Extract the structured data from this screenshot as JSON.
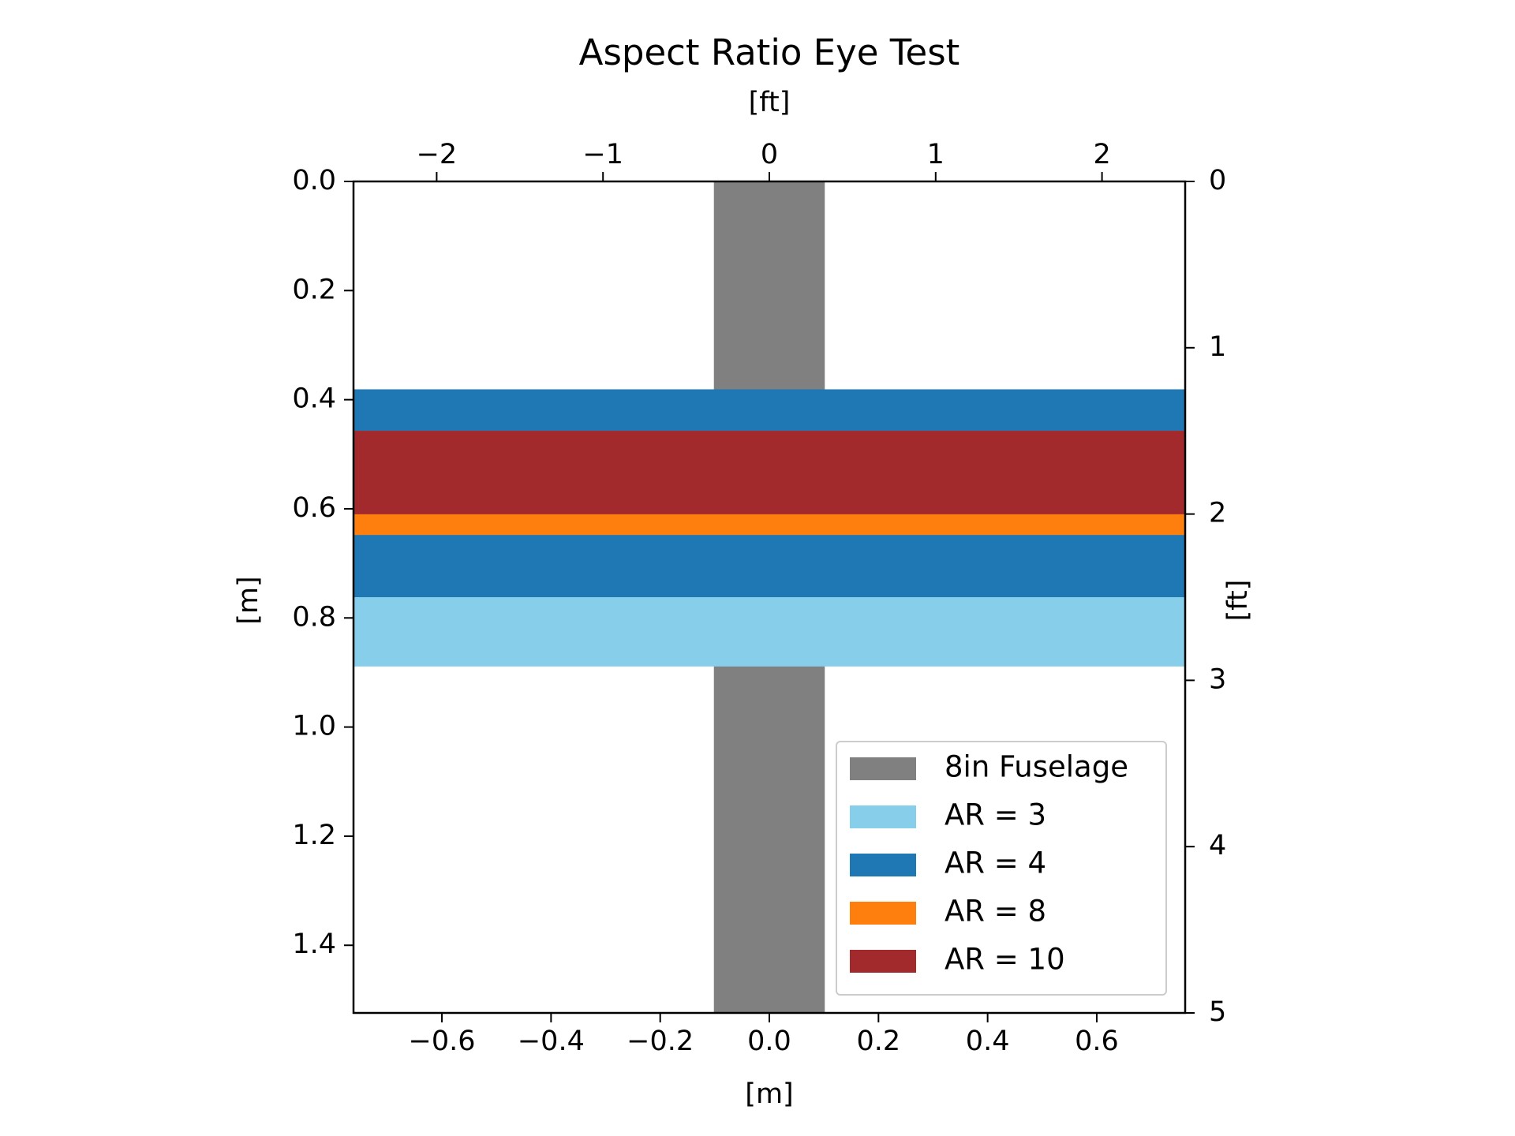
{
  "chart_data": {
    "type": "bar",
    "title": "Aspect Ratio Eye Test",
    "orientation": "horizontal spans over fuselage (top view)",
    "x_bottom": {
      "label": "[m]",
      "lim": [
        -0.762,
        0.762
      ],
      "ticks": [
        -0.6,
        -0.4,
        -0.2,
        0.0,
        0.2,
        0.4,
        0.6
      ],
      "tick_labels": [
        "−0.6",
        "−0.4",
        "−0.2",
        "0.0",
        "0.2",
        "0.4",
        "0.6"
      ]
    },
    "x_top": {
      "label": "[ft]",
      "ticks": [
        -2,
        -1,
        0,
        1,
        2
      ],
      "tick_labels": [
        "−2",
        "−1",
        "0",
        "1",
        "2"
      ]
    },
    "y_left": {
      "label": "[m]",
      "lim": [
        0.0,
        1.524
      ],
      "inverted": true,
      "ticks": [
        0.0,
        0.2,
        0.4,
        0.6,
        0.8,
        1.0,
        1.2,
        1.4
      ],
      "tick_labels": [
        "0.0",
        "0.2",
        "0.4",
        "0.6",
        "0.8",
        "1.0",
        "1.2",
        "1.4"
      ]
    },
    "y_right": {
      "label": "[ft]",
      "ticks": [
        0,
        1,
        2,
        3,
        4,
        5
      ],
      "tick_labels": [
        "0",
        "1",
        "2",
        "3",
        "4",
        "5"
      ]
    },
    "fuselage": {
      "name": "8in Fuselage",
      "color": "#808080",
      "x": [
        -0.1016,
        0.1016
      ],
      "y": [
        0.0,
        1.524
      ]
    },
    "wings": [
      {
        "name": "AR = 3",
        "color": "#87ceeb",
        "x": [
          -0.762,
          0.762
        ],
        "y": [
          0.381,
          0.889
        ]
      },
      {
        "name": "AR = 4",
        "color": "#1f77b4",
        "x": [
          -0.762,
          0.762
        ],
        "y": [
          0.381,
          0.762
        ]
      },
      {
        "name": "AR = 8",
        "color": "#ff7f0e",
        "x": [
          -0.762,
          0.762
        ],
        "y": [
          0.457,
          0.648
        ]
      },
      {
        "name": "AR = 10",
        "color": "#a2292c",
        "x": [
          -0.762,
          0.762
        ],
        "y": [
          0.457,
          0.61
        ]
      }
    ],
    "legend": {
      "position": "lower-right",
      "entries": [
        "8in Fuselage",
        "AR = 3",
        "AR = 4",
        "AR = 8",
        "AR = 10"
      ]
    },
    "grid": false
  }
}
